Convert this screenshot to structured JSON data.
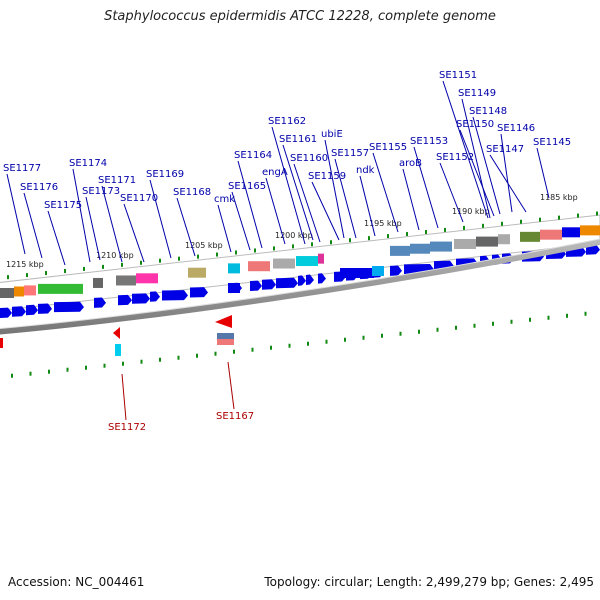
{
  "title": "Staphylococcus epidermidis ATCC 12228, complete genome",
  "accession_text": "Accession: NC_004461",
  "topology_text": "Topology: circular; Length: 2,499,279 bp; Genes: 2,495",
  "colors": {
    "forward_gene": "#0000e6",
    "reverse_gene": "#e60000",
    "forward_label": "#0000aa",
    "reverse_label": "#aa0000",
    "backbone": "#888888",
    "tick": "#118811"
  },
  "ruler_labels": [
    "1215 kbp",
    "1210 kbp",
    "1205 kbp",
    "1200 kbp",
    "1195 kbp",
    "1190 kbp",
    "1185 kbp"
  ],
  "forward_gene_labels": [
    "SE1177",
    "SE1176",
    "SE1175",
    "SE1174",
    "SE1173",
    "SE1171",
    "SE1170",
    "SE1169",
    "SE1168",
    "cmk",
    "SE1165",
    "SE1164",
    "engA",
    "SE1162",
    "SE1161",
    "SE1160",
    "SE1159",
    "ubiE",
    "SE1157",
    "ndk",
    "SE1155",
    "aroB",
    "SE1153",
    "SE1152",
    "SE1151",
    "SE1149",
    "SE1150",
    "SE1148",
    "SE1147",
    "SE1146",
    "SE1145"
  ],
  "reverse_gene_labels": [
    "SE1172",
    "SE1167"
  ]
}
